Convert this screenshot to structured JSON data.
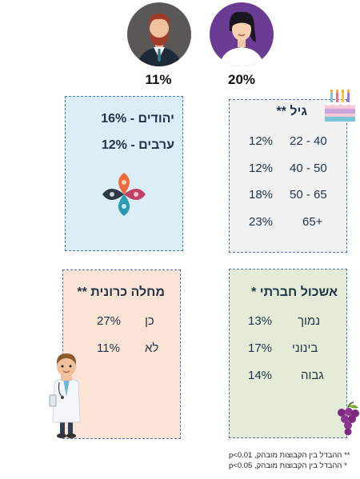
{
  "gender": {
    "male_pct": "11%",
    "female_pct": "20%"
  },
  "ethnicity": {
    "jews": "יהודים - 16%",
    "arabs": "ערבים - 12%"
  },
  "age": {
    "title": "גיל **",
    "rows": [
      {
        "range": "22 - 40",
        "pct": "12%"
      },
      {
        "range": "40 - 50",
        "pct": "12%"
      },
      {
        "range": "50 - 65",
        "pct": "18%"
      },
      {
        "range": "65+",
        "pct": "23%"
      }
    ]
  },
  "chronic": {
    "title": "מחלה כרונית **",
    "rows": [
      {
        "label": "כן",
        "pct": "27%"
      },
      {
        "label": "לא",
        "pct": "11%"
      }
    ]
  },
  "social": {
    "title": "אשכול חברתי *",
    "rows": [
      {
        "label": "נמוך",
        "pct": "13%"
      },
      {
        "label": "בינוני",
        "pct": "17%"
      },
      {
        "label": "גבוה",
        "pct": "14%"
      }
    ]
  },
  "footnotes": {
    "line1": "** ההבדל בין הקבוצות מובהק, p<0.01",
    "line2": "* ההבדל בין הקבוצות מובהק, p<0.05"
  },
  "colors": {
    "box_border": "#4a76b6",
    "ethnicity_bg": "#dbeef7",
    "age_bg": "#f1f1f1",
    "chronic_bg": "#fbe4d6",
    "social_bg": "#e4ecd8"
  }
}
